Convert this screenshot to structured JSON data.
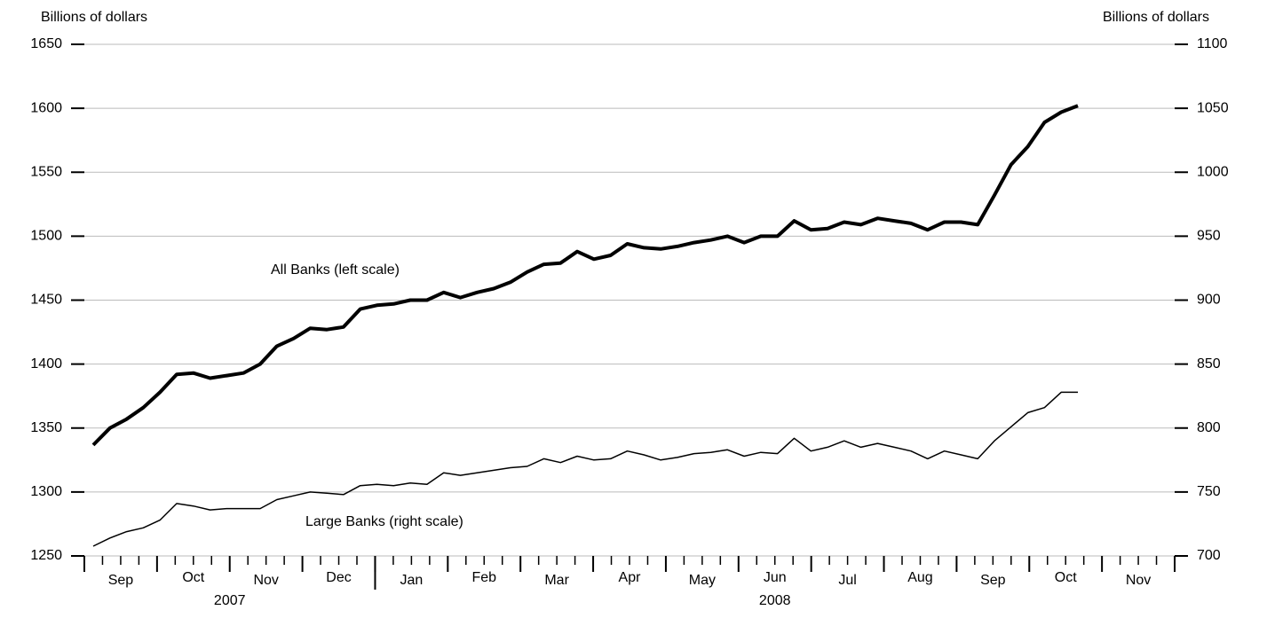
{
  "chart_data": {
    "type": "line",
    "y_label": "Billions of dollars",
    "y2_label": "Billions of dollars",
    "months": [
      "Sep",
      "Oct",
      "Nov",
      "Dec",
      "Jan",
      "Feb",
      "Mar",
      "Apr",
      "May",
      "Jun",
      "Jul",
      "Aug",
      "Sep",
      "Oct",
      "Nov"
    ],
    "years": [
      "2007",
      "2008"
    ],
    "ylim": [
      1250,
      1650
    ],
    "yticks": [
      1250,
      1300,
      1350,
      1400,
      1450,
      1500,
      1550,
      1600,
      1650
    ],
    "y2lim": [
      700,
      1100
    ],
    "y2ticks": [
      700,
      750,
      800,
      850,
      900,
      950,
      1000,
      1050,
      1100
    ],
    "grid": true,
    "series": [
      {
        "name": "All Banks (left scale)",
        "color": "#000000",
        "axis": "y",
        "values": [
          1336.7,
          1350,
          1357,
          1366,
          1378,
          1392,
          1393,
          1389,
          1391,
          1393,
          1400,
          1414,
          1420,
          1428,
          1427,
          1429,
          1443,
          1446,
          1447,
          1450,
          1450,
          1456,
          1452,
          1456,
          1459,
          1464,
          1472,
          1478,
          1479,
          1488,
          1482,
          1485,
          1494,
          1491,
          1490,
          1492,
          1495,
          1497,
          1500,
          1495,
          1500,
          1500,
          1512,
          1505,
          1506,
          1511,
          1509,
          1514,
          1512,
          1510,
          1505,
          1511,
          1511,
          1509,
          1532,
          1556,
          1570,
          1589,
          1597,
          1602
        ]
      },
      {
        "name": "Large Banks (right scale)",
        "color": "#000000",
        "axis": "y2",
        "values": [
          707.6,
          714,
          719,
          722,
          728,
          741,
          739,
          736,
          737,
          737,
          737,
          744,
          747,
          750,
          749,
          748,
          755,
          756,
          755,
          757,
          756,
          765,
          763,
          765,
          767,
          769,
          770,
          776,
          773,
          778,
          775,
          776,
          782,
          779,
          775,
          777,
          780,
          781,
          783,
          778,
          781,
          780,
          792,
          782,
          785,
          790,
          785,
          788,
          785,
          782,
          776,
          782,
          779,
          776,
          790,
          801,
          812,
          816,
          828,
          828
        ]
      }
    ]
  }
}
